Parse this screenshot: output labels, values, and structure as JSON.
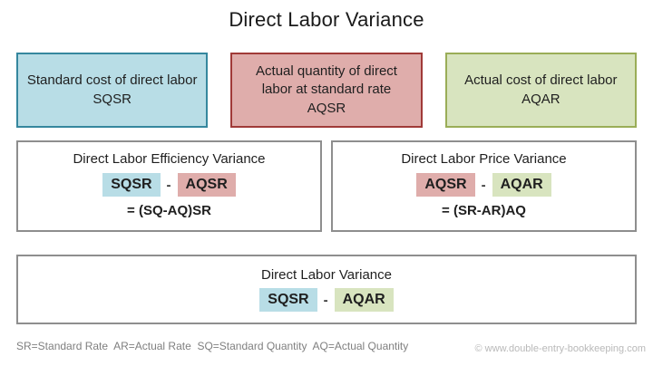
{
  "title": "Direct Labor Variance",
  "top_boxes": [
    {
      "description": "Standard cost of direct labor",
      "code": "SQSR"
    },
    {
      "description": "Actual quantity of direct labor at standard rate",
      "code": "AQSR"
    },
    {
      "description": "Actual cost of direct labor",
      "code": "AQAR"
    }
  ],
  "variance_boxes": [
    {
      "title": "Direct Labor Efficiency Variance",
      "minuend": "SQSR",
      "operator": "-",
      "subtrahend": "AQSR",
      "formula": "= (SQ-AQ)SR"
    },
    {
      "title": "Direct Labor Price Variance",
      "minuend": "AQSR",
      "operator": "-",
      "subtrahend": "AQAR",
      "formula": "= (SR-AR)AQ"
    }
  ],
  "bottom_box": {
    "title": "Direct Labor Variance",
    "minuend": "SQSR",
    "operator": "-",
    "subtrahend": "AQAR"
  },
  "footer": {
    "legend": "SR=Standard Rate  AR=Actual Rate  SQ=Standard Quantity  AQ=Actual Quantity",
    "copyright": "© www.double-entry-bookkeeping.com"
  },
  "colors": {
    "blue_fill": "#b8dde6",
    "blue_border": "#35879e",
    "red_fill": "#dfadab",
    "red_border": "#a03a38",
    "green_fill": "#d8e4bf",
    "green_border": "#9aad57",
    "outline_gray": "#8e8e8e"
  }
}
